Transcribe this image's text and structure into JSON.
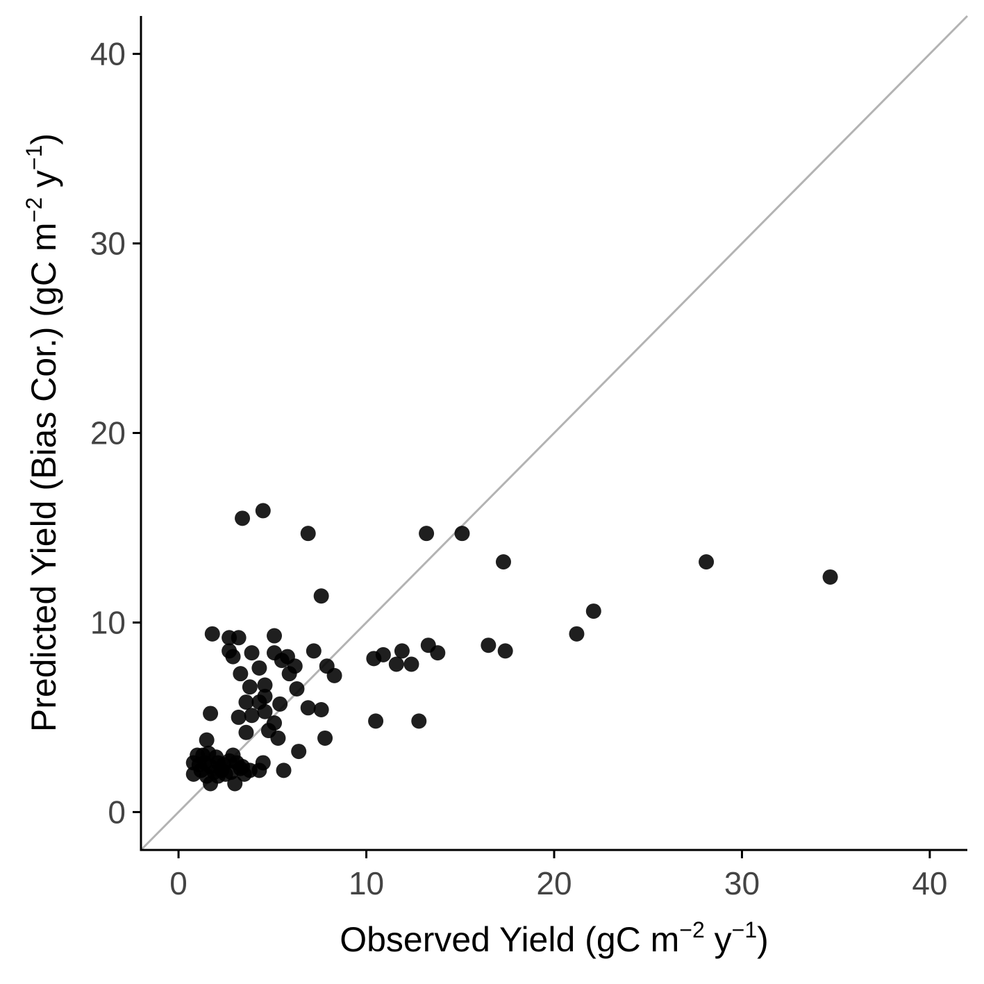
{
  "chart_data": {
    "type": "scatter",
    "title": "",
    "xlabel": {
      "prefix": "Observed Yield (gC m",
      "sup1": "−2",
      "mid": " y",
      "sup2": "−1",
      "suffix": ")"
    },
    "ylabel": {
      "prefix": "Predicted Yield (Bias Cor.) (gC m",
      "sup1": "−2",
      "mid": " y",
      "sup2": "−1",
      "suffix": ")"
    },
    "xlim": [
      -2,
      42
    ],
    "ylim": [
      -2,
      42
    ],
    "x_ticks": [
      0,
      10,
      20,
      30,
      40
    ],
    "y_ticks": [
      0,
      10,
      20,
      30,
      40
    ],
    "x_tick_labels": [
      "0",
      "10",
      "20",
      "30",
      "40"
    ],
    "y_tick_labels": [
      "0",
      "10",
      "20",
      "30",
      "40"
    ],
    "grid": false,
    "legend": "none",
    "reference_line": {
      "type": "identity",
      "color": "#b3b3b3"
    },
    "point_color": "#000000",
    "line_color": "#000000",
    "points": [
      {
        "x": 3.4,
        "y": 15.5
      },
      {
        "x": 4.5,
        "y": 15.9
      },
      {
        "x": 6.9,
        "y": 14.7
      },
      {
        "x": 13.2,
        "y": 14.7
      },
      {
        "x": 15.1,
        "y": 14.7
      },
      {
        "x": 17.3,
        "y": 13.2
      },
      {
        "x": 28.1,
        "y": 13.2
      },
      {
        "x": 34.7,
        "y": 12.4
      },
      {
        "x": 7.6,
        "y": 11.4
      },
      {
        "x": 22.1,
        "y": 10.6
      },
      {
        "x": 21.2,
        "y": 9.4
      },
      {
        "x": 1.8,
        "y": 9.4
      },
      {
        "x": 2.7,
        "y": 9.2
      },
      {
        "x": 3.2,
        "y": 9.2
      },
      {
        "x": 5.1,
        "y": 9.3
      },
      {
        "x": 2.7,
        "y": 8.5
      },
      {
        "x": 2.9,
        "y": 8.2
      },
      {
        "x": 3.9,
        "y": 8.4
      },
      {
        "x": 5.1,
        "y": 8.4
      },
      {
        "x": 5.5,
        "y": 8.0
      },
      {
        "x": 5.8,
        "y": 8.2
      },
      {
        "x": 7.2,
        "y": 8.5
      },
      {
        "x": 10.4,
        "y": 8.1
      },
      {
        "x": 10.9,
        "y": 8.3
      },
      {
        "x": 11.9,
        "y": 8.5
      },
      {
        "x": 13.3,
        "y": 8.8
      },
      {
        "x": 13.8,
        "y": 8.4
      },
      {
        "x": 16.5,
        "y": 8.8
      },
      {
        "x": 17.4,
        "y": 8.5
      },
      {
        "x": 11.6,
        "y": 7.8
      },
      {
        "x": 12.4,
        "y": 7.8
      },
      {
        "x": 4.3,
        "y": 7.6
      },
      {
        "x": 6.2,
        "y": 7.7
      },
      {
        "x": 7.9,
        "y": 7.7
      },
      {
        "x": 3.3,
        "y": 7.3
      },
      {
        "x": 5.9,
        "y": 7.3
      },
      {
        "x": 8.3,
        "y": 7.2
      },
      {
        "x": 4.6,
        "y": 6.7
      },
      {
        "x": 3.8,
        "y": 6.6
      },
      {
        "x": 6.3,
        "y": 6.5
      },
      {
        "x": 4.6,
        "y": 6.1
      },
      {
        "x": 3.6,
        "y": 5.8
      },
      {
        "x": 4.3,
        "y": 5.8
      },
      {
        "x": 5.4,
        "y": 5.7
      },
      {
        "x": 6.9,
        "y": 5.5
      },
      {
        "x": 7.6,
        "y": 5.4
      },
      {
        "x": 1.7,
        "y": 5.2
      },
      {
        "x": 3.9,
        "y": 5.1
      },
      {
        "x": 4.6,
        "y": 5.3
      },
      {
        "x": 3.2,
        "y": 5.0
      },
      {
        "x": 10.5,
        "y": 4.8
      },
      {
        "x": 12.8,
        "y": 4.8
      },
      {
        "x": 5.1,
        "y": 4.7
      },
      {
        "x": 4.8,
        "y": 4.3
      },
      {
        "x": 3.6,
        "y": 4.2
      },
      {
        "x": 5.3,
        "y": 3.9
      },
      {
        "x": 7.8,
        "y": 3.9
      },
      {
        "x": 1.5,
        "y": 3.8
      },
      {
        "x": 6.4,
        "y": 3.2
      },
      {
        "x": 1.0,
        "y": 3.0
      },
      {
        "x": 1.3,
        "y": 3.0
      },
      {
        "x": 1.6,
        "y": 3.1
      },
      {
        "x": 2.0,
        "y": 2.9
      },
      {
        "x": 2.9,
        "y": 3.0
      },
      {
        "x": 0.8,
        "y": 2.6
      },
      {
        "x": 1.1,
        "y": 2.5
      },
      {
        "x": 1.4,
        "y": 2.6
      },
      {
        "x": 1.7,
        "y": 2.4
      },
      {
        "x": 2.1,
        "y": 2.6
      },
      {
        "x": 2.4,
        "y": 2.5
      },
      {
        "x": 2.7,
        "y": 2.7
      },
      {
        "x": 3.1,
        "y": 2.6
      },
      {
        "x": 3.4,
        "y": 2.4
      },
      {
        "x": 4.5,
        "y": 2.6
      },
      {
        "x": 1.2,
        "y": 2.2
      },
      {
        "x": 1.9,
        "y": 2.1
      },
      {
        "x": 2.3,
        "y": 2.2
      },
      {
        "x": 2.8,
        "y": 2.1
      },
      {
        "x": 3.3,
        "y": 2.3
      },
      {
        "x": 3.8,
        "y": 2.2
      },
      {
        "x": 4.3,
        "y": 2.2
      },
      {
        "x": 5.6,
        "y": 2.2
      },
      {
        "x": 0.8,
        "y": 2.0
      },
      {
        "x": 1.5,
        "y": 1.9
      },
      {
        "x": 2.1,
        "y": 1.9
      },
      {
        "x": 2.5,
        "y": 2.0
      },
      {
        "x": 3.5,
        "y": 2.0
      },
      {
        "x": 1.7,
        "y": 1.5
      },
      {
        "x": 3.0,
        "y": 1.5
      }
    ]
  }
}
